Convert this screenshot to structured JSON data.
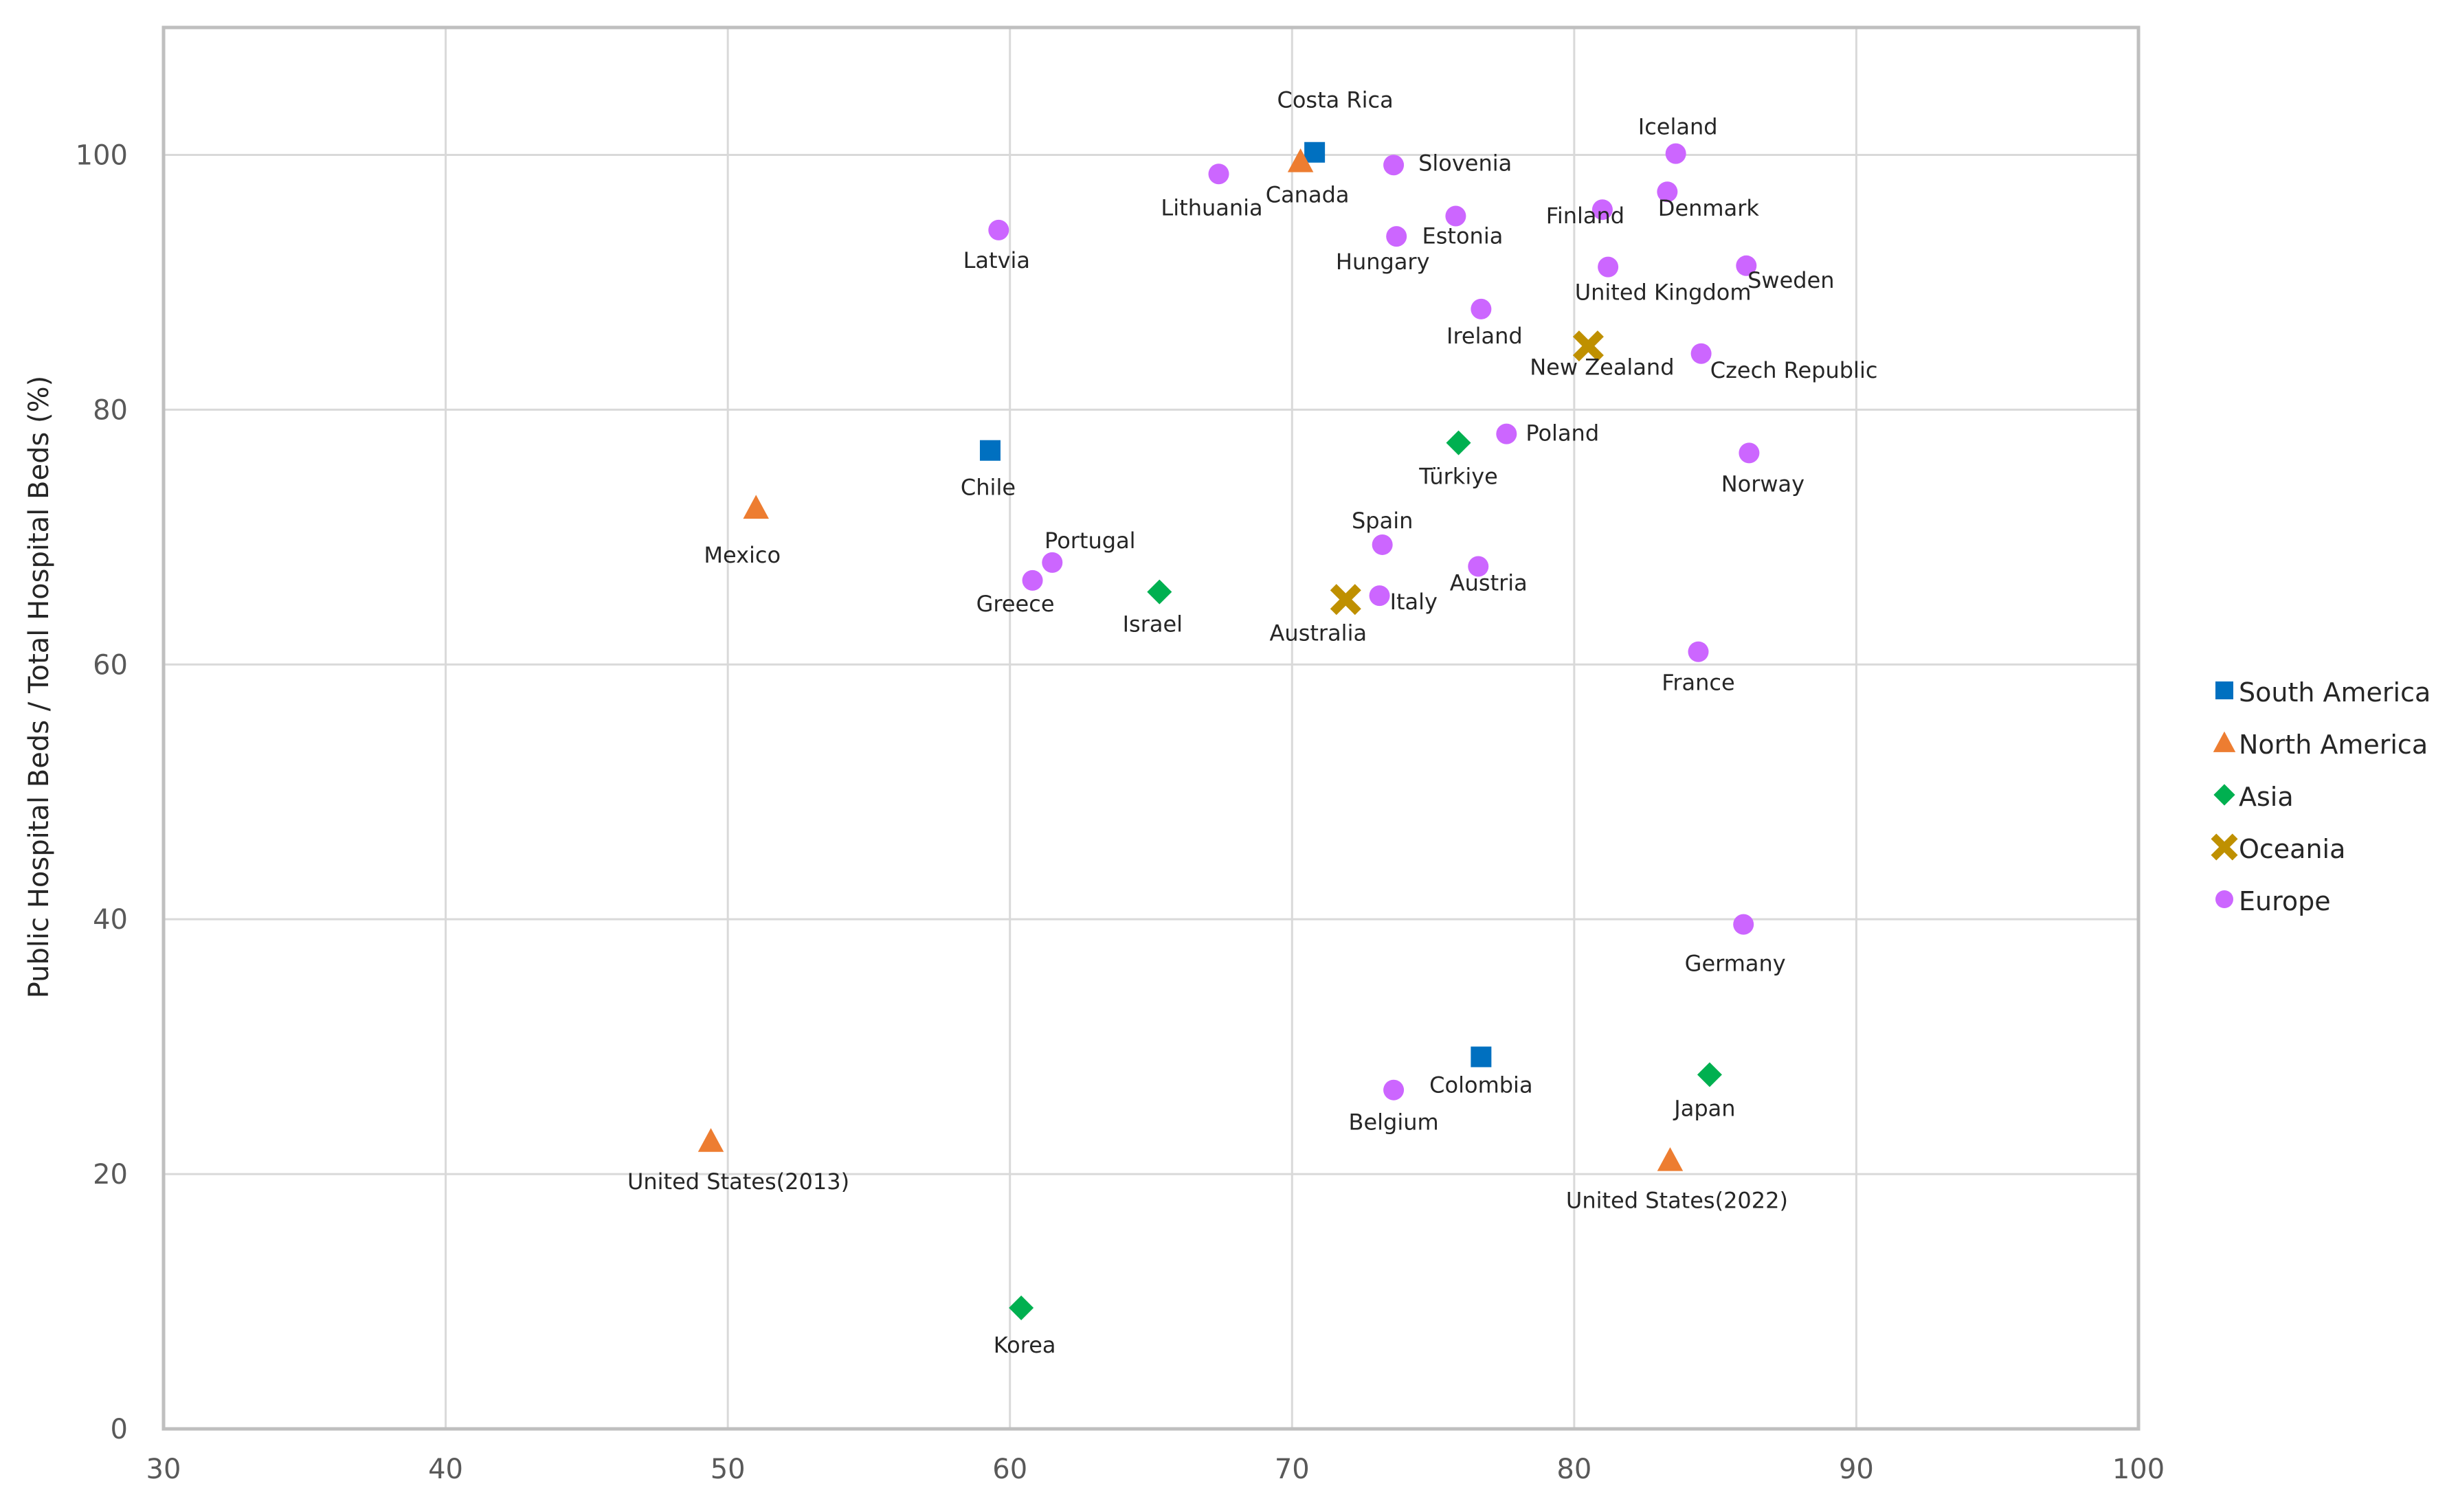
{
  "chart_data": {
    "type": "scatter",
    "title": "",
    "xlabel": "",
    "ylabel": "Public Hospital Beds / Total Hospital Beds (%)",
    "xlim": [
      30,
      100
    ],
    "ylim": [
      0,
      110
    ],
    "xticks": [
      "30",
      "40",
      "50",
      "60",
      "70",
      "80",
      "90",
      "100"
    ],
    "yticks": [
      "0",
      "20",
      "40",
      "60",
      "80",
      "100"
    ],
    "grid": true,
    "legend_position": "right",
    "series": [
      {
        "name": "South America",
        "marker": "square",
        "color": "#0070C0",
        "points": [
          {
            "label": "Costa Rica",
            "x": 70.8,
            "y": 100.2
          },
          {
            "label": "Chile",
            "x": 59.3,
            "y": 76.8
          },
          {
            "label": "Colombia",
            "x": 76.7,
            "y": 29.2
          }
        ]
      },
      {
        "name": "North America",
        "marker": "triangle",
        "color": "#ED7D31",
        "points": [
          {
            "label": "Canada",
            "x": 70.3,
            "y": 99.5
          },
          {
            "label": "Mexico",
            "x": 51.0,
            "y": 72.3
          },
          {
            "label": "United States(2013)",
            "x": 49.4,
            "y": 22.6
          },
          {
            "label": "United States(2022)",
            "x": 83.4,
            "y": 21.1
          }
        ]
      },
      {
        "name": "Asia",
        "marker": "diamond",
        "color": "#00B050",
        "points": [
          {
            "label": "Türkiye",
            "x": 75.9,
            "y": 77.4
          },
          {
            "label": "Israel",
            "x": 65.3,
            "y": 65.7
          },
          {
            "label": "Japan",
            "x": 84.8,
            "y": 27.8
          },
          {
            "label": "Korea",
            "x": 60.4,
            "y": 9.5
          }
        ]
      },
      {
        "name": "Oceania",
        "marker": "cross",
        "color": "#BF9000",
        "points": [
          {
            "label": "New Zealand",
            "x": 80.5,
            "y": 85.0
          },
          {
            "label": "Australia",
            "x": 71.9,
            "y": 65.1
          }
        ]
      },
      {
        "name": "Europe",
        "marker": "circle",
        "color": "#CC66FF",
        "points": [
          {
            "label": "Iceland",
            "x": 83.6,
            "y": 100.1
          },
          {
            "label": "Slovenia",
            "x": 73.6,
            "y": 99.2
          },
          {
            "label": "Lithuania",
            "x": 67.4,
            "y": 98.5
          },
          {
            "label": "Denmark",
            "x": 83.3,
            "y": 97.1
          },
          {
            "label": "Finland",
            "x": 81.0,
            "y": 95.7
          },
          {
            "label": "Estonia",
            "x": 75.8,
            "y": 95.2
          },
          {
            "label": "Latvia",
            "x": 59.6,
            "y": 94.1
          },
          {
            "label": "Hungary",
            "x": 73.7,
            "y": 93.6
          },
          {
            "label": "United Kingdom",
            "x": 81.2,
            "y": 91.2
          },
          {
            "label": "Sweden",
            "x": 86.1,
            "y": 91.3
          },
          {
            "label": "Ireland",
            "x": 76.7,
            "y": 87.9
          },
          {
            "label": "Czech Republic",
            "x": 84.5,
            "y": 84.4
          },
          {
            "label": "Poland",
            "x": 77.6,
            "y": 78.1
          },
          {
            "label": "Norway",
            "x": 86.2,
            "y": 76.6
          },
          {
            "label": "Spain",
            "x": 73.2,
            "y": 69.4
          },
          {
            "label": "Portugal",
            "x": 61.5,
            "y": 68.0
          },
          {
            "label": "Austria",
            "x": 76.6,
            "y": 67.7
          },
          {
            "label": "Greece",
            "x": 60.8,
            "y": 66.6
          },
          {
            "label": "Italy",
            "x": 73.1,
            "y": 65.4
          },
          {
            "label": "France",
            "x": 84.4,
            "y": 61.0
          },
          {
            "label": "Germany",
            "x": 86.0,
            "y": 39.6
          },
          {
            "label": "Belgium",
            "x": 73.6,
            "y": 26.6
          }
        ]
      }
    ]
  }
}
